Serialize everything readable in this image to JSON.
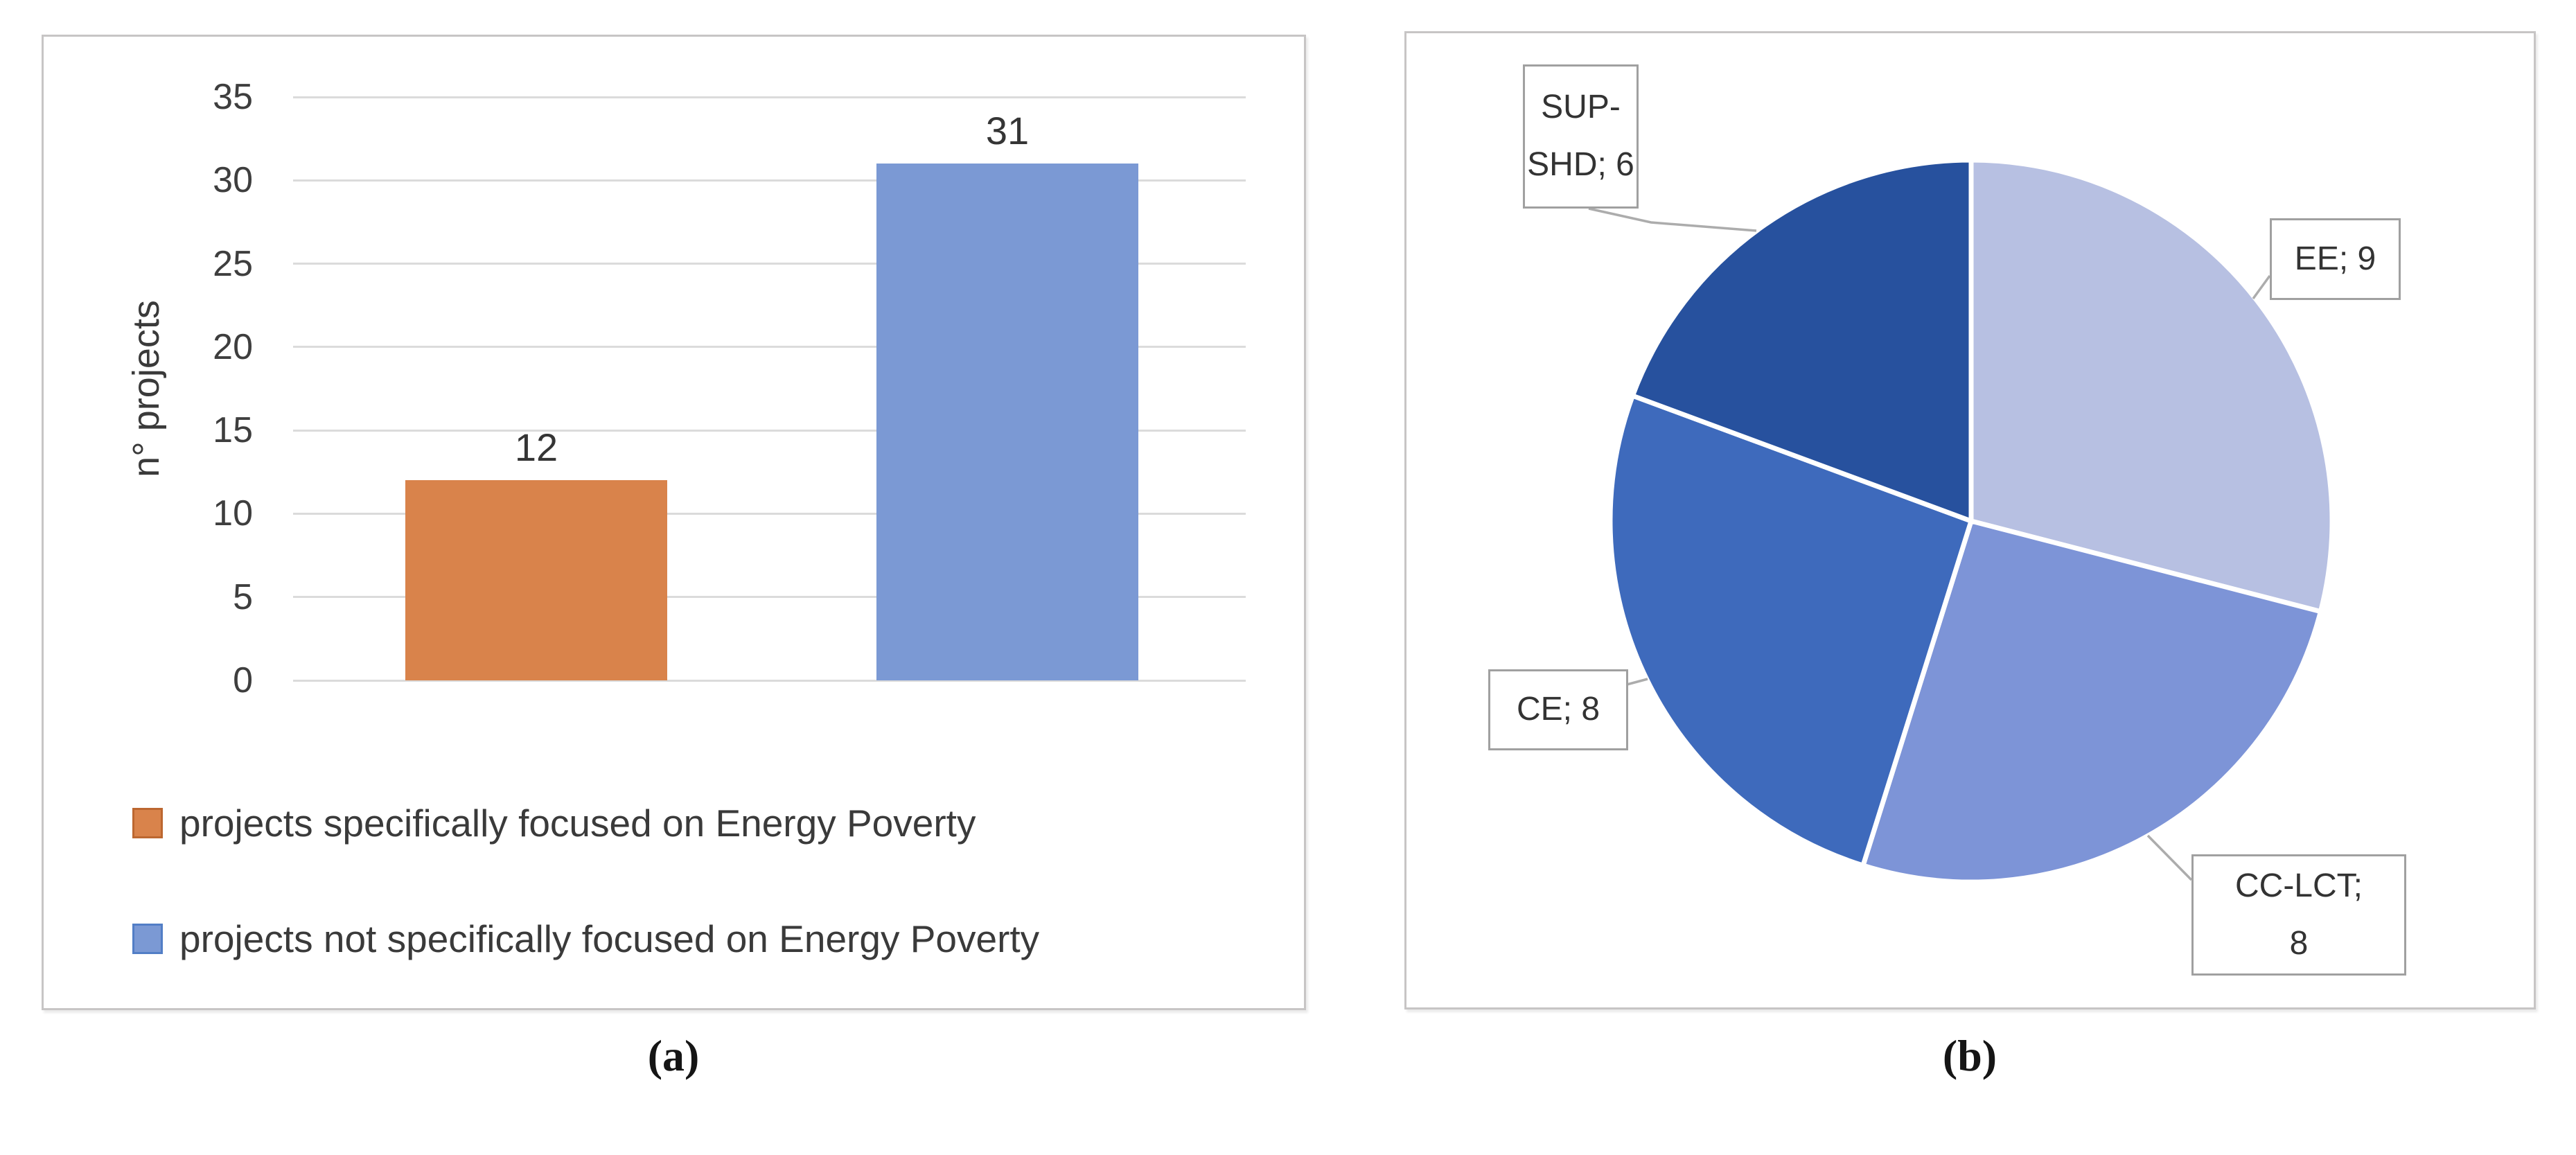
{
  "figure": {
    "caption_a": "(a)",
    "caption_b": "(b)"
  },
  "palette": {
    "bar_orange": "#D9834B",
    "bar_blue": "#7B99D4",
    "pie_ee": "#B7C0E2",
    "pie_cc_lct": "#7D94D7",
    "pie_ce": "#3E6ABC",
    "pie_sup_shd": "#27519E",
    "gridline": "#DBDBDB",
    "axis_text": "#3E3E3E",
    "panel_border": "#C7C5C5",
    "callout_border": "#A0A0A0",
    "leader_line": "#ACACAC"
  },
  "chart_data": [
    {
      "type": "bar",
      "panel": "a",
      "title": "",
      "xlabel": "",
      "ylabel": "n° projects",
      "ylim": [
        0,
        35
      ],
      "yticks": [
        0,
        5,
        10,
        15,
        20,
        25,
        30,
        35
      ],
      "grid": true,
      "categories": [
        "projects specifically focused on Energy Poverty",
        "projects not specifically focused on Energy Poverty"
      ],
      "values": [
        12,
        31
      ],
      "data_labels": [
        "12",
        "31"
      ],
      "colors": [
        "#D9834B",
        "#7B99D4"
      ],
      "legend_marker_borders": [
        "#BC6730",
        "#527EC6"
      ],
      "legend_position": "bottom-left"
    },
    {
      "type": "pie",
      "panel": "b",
      "title": "",
      "start_angle_deg": 0,
      "direction": "clockwise",
      "total": 31,
      "slices": [
        {
          "label": "EE",
          "value": 9,
          "color": "#B7C0E2",
          "label_lines": [
            "EE; 9"
          ]
        },
        {
          "label": "CC-LCT",
          "value": 8,
          "color": "#7D94D7",
          "label_lines": [
            "CC-LCT;",
            "8"
          ]
        },
        {
          "label": "CE",
          "value": 8,
          "color": "#3E6ABC",
          "label_lines": [
            "CE; 8"
          ]
        },
        {
          "label": "SUP-SHD",
          "value": 6,
          "color": "#27519E",
          "label_lines": [
            "SUP-",
            "SHD; 6"
          ]
        }
      ]
    }
  ]
}
